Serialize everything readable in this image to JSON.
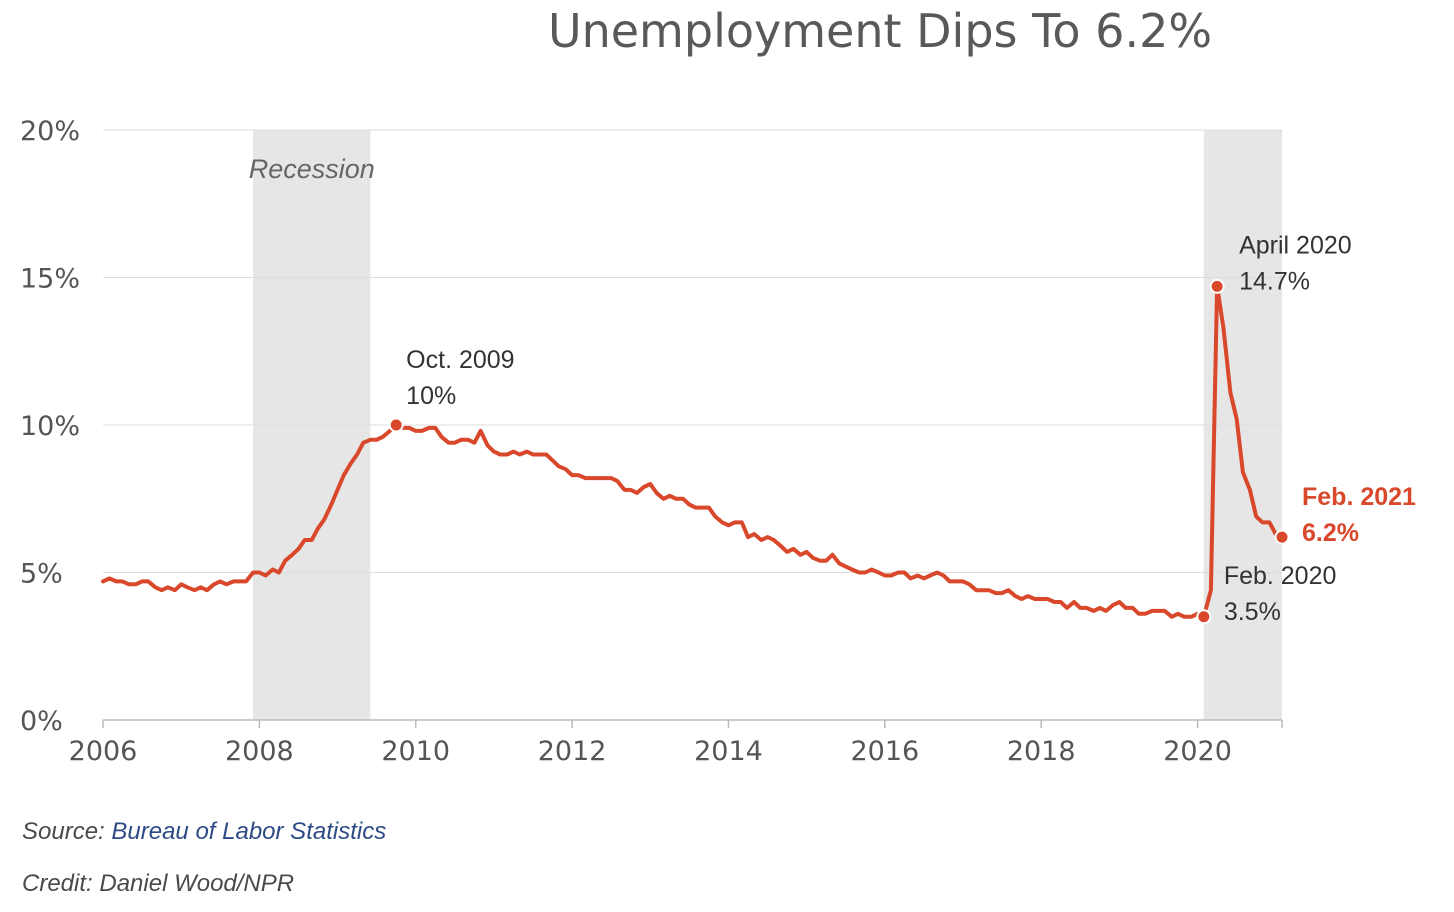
{
  "chart_data": {
    "type": "line",
    "title": "Unemployment Dips To 6.2%",
    "xlabel": "",
    "ylabel": "",
    "xlim": [
      2006.0,
      2021.08
    ],
    "ylim": [
      0,
      20
    ],
    "x_ticks": [
      "2006",
      "2008",
      "2010",
      "2012",
      "2014",
      "2016",
      "2018",
      "2020"
    ],
    "y_ticks": [
      "0%",
      "5%",
      "10%",
      "15%",
      "20%"
    ],
    "grid": "horizontal",
    "colors": {
      "line": "#d9482b",
      "shade": "#e6e6e6",
      "grid": "#dddddd",
      "text": "#555555",
      "highlight": "#d9482b"
    },
    "shaded_regions": [
      {
        "start": 2007.92,
        "end": 2009.42,
        "label": "Recession"
      },
      {
        "start": 2020.08,
        "end": 2021.08,
        "label": ""
      }
    ],
    "series": [
      {
        "values": [
          [
            2006.0,
            4.7
          ],
          [
            2006.08,
            4.8
          ],
          [
            2006.17,
            4.7
          ],
          [
            2006.25,
            4.7
          ],
          [
            2006.33,
            4.6
          ],
          [
            2006.42,
            4.6
          ],
          [
            2006.5,
            4.7
          ],
          [
            2006.58,
            4.7
          ],
          [
            2006.67,
            4.5
          ],
          [
            2006.75,
            4.4
          ],
          [
            2006.83,
            4.5
          ],
          [
            2006.92,
            4.4
          ],
          [
            2007.0,
            4.6
          ],
          [
            2007.08,
            4.5
          ],
          [
            2007.17,
            4.4
          ],
          [
            2007.25,
            4.5
          ],
          [
            2007.33,
            4.4
          ],
          [
            2007.42,
            4.6
          ],
          [
            2007.5,
            4.7
          ],
          [
            2007.58,
            4.6
          ],
          [
            2007.67,
            4.7
          ],
          [
            2007.75,
            4.7
          ],
          [
            2007.83,
            4.7
          ],
          [
            2007.92,
            5.0
          ],
          [
            2008.0,
            5.0
          ],
          [
            2008.08,
            4.9
          ],
          [
            2008.17,
            5.1
          ],
          [
            2008.25,
            5.0
          ],
          [
            2008.33,
            5.4
          ],
          [
            2008.42,
            5.6
          ],
          [
            2008.5,
            5.8
          ],
          [
            2008.58,
            6.1
          ],
          [
            2008.67,
            6.1
          ],
          [
            2008.75,
            6.5
          ],
          [
            2008.83,
            6.8
          ],
          [
            2008.92,
            7.3
          ],
          [
            2009.0,
            7.8
          ],
          [
            2009.08,
            8.3
          ],
          [
            2009.17,
            8.7
          ],
          [
            2009.25,
            9.0
          ],
          [
            2009.33,
            9.4
          ],
          [
            2009.42,
            9.5
          ],
          [
            2009.5,
            9.5
          ],
          [
            2009.58,
            9.6
          ],
          [
            2009.67,
            9.8
          ],
          [
            2009.75,
            10.0
          ],
          [
            2009.83,
            9.9
          ],
          [
            2009.92,
            9.9
          ],
          [
            2010.0,
            9.8
          ],
          [
            2010.08,
            9.8
          ],
          [
            2010.17,
            9.9
          ],
          [
            2010.25,
            9.9
          ],
          [
            2010.33,
            9.6
          ],
          [
            2010.42,
            9.4
          ],
          [
            2010.5,
            9.4
          ],
          [
            2010.58,
            9.5
          ],
          [
            2010.67,
            9.5
          ],
          [
            2010.75,
            9.4
          ],
          [
            2010.83,
            9.8
          ],
          [
            2010.92,
            9.3
          ],
          [
            2011.0,
            9.1
          ],
          [
            2011.08,
            9.0
          ],
          [
            2011.17,
            9.0
          ],
          [
            2011.25,
            9.1
          ],
          [
            2011.33,
            9.0
          ],
          [
            2011.42,
            9.1
          ],
          [
            2011.5,
            9.0
          ],
          [
            2011.58,
            9.0
          ],
          [
            2011.67,
            9.0
          ],
          [
            2011.75,
            8.8
          ],
          [
            2011.83,
            8.6
          ],
          [
            2011.92,
            8.5
          ],
          [
            2012.0,
            8.3
          ],
          [
            2012.08,
            8.3
          ],
          [
            2012.17,
            8.2
          ],
          [
            2012.25,
            8.2
          ],
          [
            2012.33,
            8.2
          ],
          [
            2012.42,
            8.2
          ],
          [
            2012.5,
            8.2
          ],
          [
            2012.58,
            8.1
          ],
          [
            2012.67,
            7.8
          ],
          [
            2012.75,
            7.8
          ],
          [
            2012.83,
            7.7
          ],
          [
            2012.92,
            7.9
          ],
          [
            2013.0,
            8.0
          ],
          [
            2013.08,
            7.7
          ],
          [
            2013.17,
            7.5
          ],
          [
            2013.25,
            7.6
          ],
          [
            2013.33,
            7.5
          ],
          [
            2013.42,
            7.5
          ],
          [
            2013.5,
            7.3
          ],
          [
            2013.58,
            7.2
          ],
          [
            2013.67,
            7.2
          ],
          [
            2013.75,
            7.2
          ],
          [
            2013.83,
            6.9
          ],
          [
            2013.92,
            6.7
          ],
          [
            2014.0,
            6.6
          ],
          [
            2014.08,
            6.7
          ],
          [
            2014.17,
            6.7
          ],
          [
            2014.25,
            6.2
          ],
          [
            2014.33,
            6.3
          ],
          [
            2014.42,
            6.1
          ],
          [
            2014.5,
            6.2
          ],
          [
            2014.58,
            6.1
          ],
          [
            2014.67,
            5.9
          ],
          [
            2014.75,
            5.7
          ],
          [
            2014.83,
            5.8
          ],
          [
            2014.92,
            5.6
          ],
          [
            2015.0,
            5.7
          ],
          [
            2015.08,
            5.5
          ],
          [
            2015.17,
            5.4
          ],
          [
            2015.25,
            5.4
          ],
          [
            2015.33,
            5.6
          ],
          [
            2015.42,
            5.3
          ],
          [
            2015.5,
            5.2
          ],
          [
            2015.58,
            5.1
          ],
          [
            2015.67,
            5.0
          ],
          [
            2015.75,
            5.0
          ],
          [
            2015.83,
            5.1
          ],
          [
            2015.92,
            5.0
          ],
          [
            2016.0,
            4.9
          ],
          [
            2016.08,
            4.9
          ],
          [
            2016.17,
            5.0
          ],
          [
            2016.25,
            5.0
          ],
          [
            2016.33,
            4.8
          ],
          [
            2016.42,
            4.9
          ],
          [
            2016.5,
            4.8
          ],
          [
            2016.58,
            4.9
          ],
          [
            2016.67,
            5.0
          ],
          [
            2016.75,
            4.9
          ],
          [
            2016.83,
            4.7
          ],
          [
            2016.92,
            4.7
          ],
          [
            2017.0,
            4.7
          ],
          [
            2017.08,
            4.6
          ],
          [
            2017.17,
            4.4
          ],
          [
            2017.25,
            4.4
          ],
          [
            2017.33,
            4.4
          ],
          [
            2017.42,
            4.3
          ],
          [
            2017.5,
            4.3
          ],
          [
            2017.58,
            4.4
          ],
          [
            2017.67,
            4.2
          ],
          [
            2017.75,
            4.1
          ],
          [
            2017.83,
            4.2
          ],
          [
            2017.92,
            4.1
          ],
          [
            2018.0,
            4.1
          ],
          [
            2018.08,
            4.1
          ],
          [
            2018.17,
            4.0
          ],
          [
            2018.25,
            4.0
          ],
          [
            2018.33,
            3.8
          ],
          [
            2018.42,
            4.0
          ],
          [
            2018.5,
            3.8
          ],
          [
            2018.58,
            3.8
          ],
          [
            2018.67,
            3.7
          ],
          [
            2018.75,
            3.8
          ],
          [
            2018.83,
            3.7
          ],
          [
            2018.92,
            3.9
          ],
          [
            2019.0,
            4.0
          ],
          [
            2019.08,
            3.8
          ],
          [
            2019.17,
            3.8
          ],
          [
            2019.25,
            3.6
          ],
          [
            2019.33,
            3.6
          ],
          [
            2019.42,
            3.7
          ],
          [
            2019.5,
            3.7
          ],
          [
            2019.58,
            3.7
          ],
          [
            2019.67,
            3.5
          ],
          [
            2019.75,
            3.6
          ],
          [
            2019.83,
            3.5
          ],
          [
            2019.92,
            3.5
          ],
          [
            2020.0,
            3.6
          ],
          [
            2020.08,
            3.5
          ],
          [
            2020.17,
            4.4
          ],
          [
            2020.25,
            14.7
          ],
          [
            2020.33,
            13.3
          ],
          [
            2020.42,
            11.1
          ],
          [
            2020.5,
            10.2
          ],
          [
            2020.58,
            8.4
          ],
          [
            2020.67,
            7.8
          ],
          [
            2020.75,
            6.9
          ],
          [
            2020.83,
            6.7
          ],
          [
            2020.92,
            6.7
          ],
          [
            2021.0,
            6.3
          ],
          [
            2021.08,
            6.2
          ]
        ]
      }
    ],
    "annotations": [
      {
        "x": 2009.75,
        "y": 10.0,
        "line1": "Oct. 2009",
        "line2": "10%",
        "highlight": false
      },
      {
        "x": 2020.25,
        "y": 14.7,
        "line1": "April 2020",
        "line2": "14.7%",
        "highlight": false
      },
      {
        "x": 2020.08,
        "y": 3.5,
        "line1": "Feb. 2020",
        "line2": "3.5%",
        "highlight": false
      },
      {
        "x": 2021.08,
        "y": 6.2,
        "line1": "Feb. 2021",
        "line2": "6.2%",
        "highlight": true
      }
    ]
  },
  "footer": {
    "source_prefix": "Source: ",
    "source_name": "Bureau of Labor Statistics",
    "credit": "Credit: Daniel Wood/NPR"
  }
}
